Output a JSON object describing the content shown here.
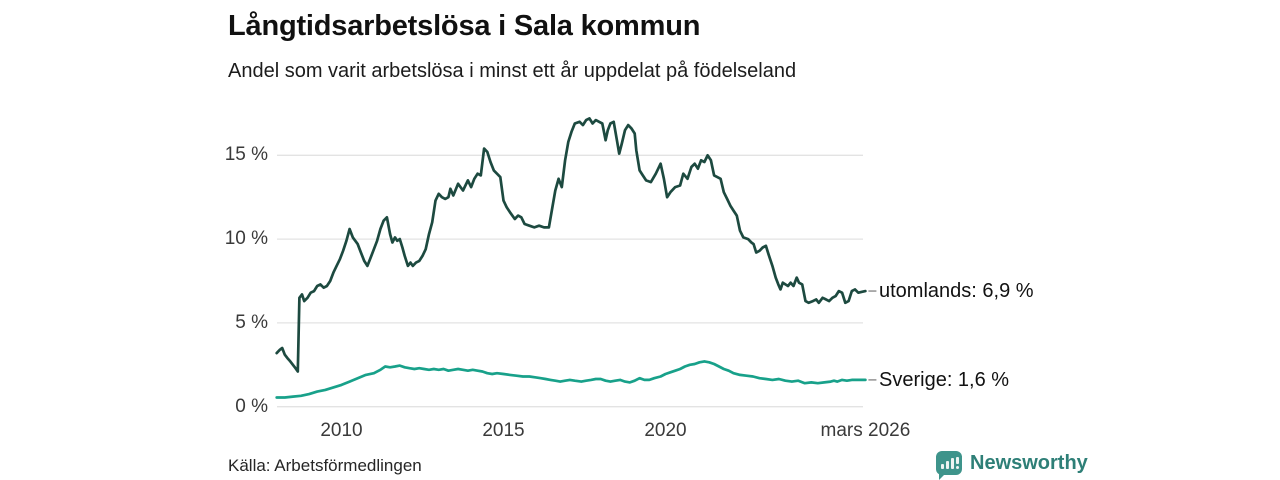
{
  "header": {
    "title": "Långtidsarbetslösa i Sala kommun",
    "subtitle": "Andel som varit arbetslösa i minst ett år uppdelat på födelseland"
  },
  "footer": {
    "source": "Källa: Arbetsförmedlingen",
    "brand_name": "Newsworthy",
    "brand_icon": "bar-chart-speech-bubble-icon",
    "brand_color": "#2e7f77"
  },
  "colors": {
    "background": "#ffffff",
    "gridline": "#e3e3e3",
    "axis_text": "#3a3a3a",
    "leader_tick": "#999999"
  },
  "chart_data": {
    "type": "line",
    "title": "Långtidsarbetslösa i Sala kommun",
    "subtitle": "Andel som varit arbetslösa i minst ett år uppdelat på födelseland",
    "xlabel": "",
    "ylabel": "",
    "xlim": [
      2008.0,
      2026.17
    ],
    "ylim": [
      0,
      18.2
    ],
    "grid": "horizontal",
    "legend_position": "right-end-labels",
    "y_ticks": [
      {
        "label": "0 %",
        "value": 0
      },
      {
        "label": "5 %",
        "value": 5
      },
      {
        "label": "10 %",
        "value": 10
      },
      {
        "label": "15 %",
        "value": 15
      }
    ],
    "x_ticks": [
      {
        "label": "2010",
        "x": 2010
      },
      {
        "label": "2015",
        "x": 2015
      },
      {
        "label": "2020",
        "x": 2020
      },
      {
        "label": "mars 2026",
        "x": 2026.17
      }
    ],
    "series": [
      {
        "name": "utomlands",
        "end_label": "utomlands: 6,9 %",
        "end_value_pct": 6.9,
        "color": "#1d4a40",
        "points": [
          [
            2008.0,
            3.2
          ],
          [
            2008.1,
            3.4
          ],
          [
            2008.17,
            3.5
          ],
          [
            2008.25,
            3.1
          ],
          [
            2008.33,
            2.9
          ],
          [
            2008.42,
            2.7
          ],
          [
            2008.5,
            2.5
          ],
          [
            2008.58,
            2.3
          ],
          [
            2008.65,
            2.1
          ],
          [
            2008.7,
            6.5
          ],
          [
            2008.78,
            6.7
          ],
          [
            2008.85,
            6.3
          ],
          [
            2008.95,
            6.5
          ],
          [
            2009.05,
            6.8
          ],
          [
            2009.15,
            6.9
          ],
          [
            2009.25,
            7.2
          ],
          [
            2009.35,
            7.3
          ],
          [
            2009.45,
            7.1
          ],
          [
            2009.55,
            7.2
          ],
          [
            2009.65,
            7.5
          ],
          [
            2009.75,
            8.0
          ],
          [
            2009.85,
            8.4
          ],
          [
            2009.95,
            8.8
          ],
          [
            2010.05,
            9.3
          ],
          [
            2010.15,
            9.9
          ],
          [
            2010.25,
            10.6
          ],
          [
            2010.35,
            10.1
          ],
          [
            2010.5,
            9.7
          ],
          [
            2010.6,
            9.2
          ],
          [
            2010.7,
            8.7
          ],
          [
            2010.8,
            8.4
          ],
          [
            2010.9,
            8.9
          ],
          [
            2011.0,
            9.4
          ],
          [
            2011.1,
            9.9
          ],
          [
            2011.2,
            10.6
          ],
          [
            2011.3,
            11.1
          ],
          [
            2011.4,
            11.3
          ],
          [
            2011.5,
            10.3
          ],
          [
            2011.57,
            9.8
          ],
          [
            2011.65,
            10.1
          ],
          [
            2011.72,
            9.9
          ],
          [
            2011.8,
            10.0
          ],
          [
            2011.88,
            9.5
          ],
          [
            2011.95,
            9.0
          ],
          [
            2012.05,
            8.4
          ],
          [
            2012.13,
            8.6
          ],
          [
            2012.2,
            8.4
          ],
          [
            2012.3,
            8.6
          ],
          [
            2012.4,
            8.7
          ],
          [
            2012.5,
            9.0
          ],
          [
            2012.6,
            9.4
          ],
          [
            2012.7,
            10.3
          ],
          [
            2012.8,
            11.0
          ],
          [
            2012.9,
            12.3
          ],
          [
            2013.0,
            12.7
          ],
          [
            2013.1,
            12.5
          ],
          [
            2013.2,
            12.4
          ],
          [
            2013.3,
            12.5
          ],
          [
            2013.36,
            13.0
          ],
          [
            2013.45,
            12.6
          ],
          [
            2013.6,
            13.3
          ],
          [
            2013.75,
            12.9
          ],
          [
            2013.9,
            13.5
          ],
          [
            2014.0,
            13.1
          ],
          [
            2014.1,
            13.6
          ],
          [
            2014.2,
            13.9
          ],
          [
            2014.3,
            13.8
          ],
          [
            2014.4,
            15.4
          ],
          [
            2014.5,
            15.2
          ],
          [
            2014.6,
            14.6
          ],
          [
            2014.7,
            14.1
          ],
          [
            2014.8,
            13.9
          ],
          [
            2014.9,
            13.7
          ],
          [
            2015.0,
            12.3
          ],
          [
            2015.1,
            11.9
          ],
          [
            2015.2,
            11.6
          ],
          [
            2015.35,
            11.2
          ],
          [
            2015.45,
            11.4
          ],
          [
            2015.55,
            11.3
          ],
          [
            2015.65,
            10.9
          ],
          [
            2015.8,
            10.8
          ],
          [
            2015.95,
            10.7
          ],
          [
            2016.1,
            10.8
          ],
          [
            2016.25,
            10.7
          ],
          [
            2016.4,
            10.7
          ],
          [
            2016.5,
            11.8
          ],
          [
            2016.6,
            12.9
          ],
          [
            2016.7,
            13.6
          ],
          [
            2016.8,
            13.1
          ],
          [
            2016.9,
            14.7
          ],
          [
            2017.0,
            15.8
          ],
          [
            2017.1,
            16.4
          ],
          [
            2017.2,
            16.9
          ],
          [
            2017.35,
            17.0
          ],
          [
            2017.45,
            16.8
          ],
          [
            2017.55,
            17.1
          ],
          [
            2017.65,
            17.2
          ],
          [
            2017.75,
            16.9
          ],
          [
            2017.85,
            17.1
          ],
          [
            2017.95,
            17.0
          ],
          [
            2018.05,
            16.9
          ],
          [
            2018.15,
            15.9
          ],
          [
            2018.22,
            16.5
          ],
          [
            2018.3,
            16.9
          ],
          [
            2018.4,
            17.0
          ],
          [
            2018.5,
            15.9
          ],
          [
            2018.57,
            15.1
          ],
          [
            2018.65,
            15.7
          ],
          [
            2018.75,
            16.5
          ],
          [
            2018.85,
            16.8
          ],
          [
            2018.95,
            16.6
          ],
          [
            2019.05,
            16.3
          ],
          [
            2019.1,
            15.3
          ],
          [
            2019.2,
            14.1
          ],
          [
            2019.3,
            13.8
          ],
          [
            2019.4,
            13.5
          ],
          [
            2019.55,
            13.4
          ],
          [
            2019.7,
            13.9
          ],
          [
            2019.85,
            14.5
          ],
          [
            2019.95,
            13.6
          ],
          [
            2020.05,
            12.5
          ],
          [
            2020.15,
            12.8
          ],
          [
            2020.3,
            13.1
          ],
          [
            2020.45,
            13.2
          ],
          [
            2020.55,
            13.9
          ],
          [
            2020.68,
            13.6
          ],
          [
            2020.8,
            14.3
          ],
          [
            2020.9,
            14.5
          ],
          [
            2021.0,
            14.2
          ],
          [
            2021.1,
            14.7
          ],
          [
            2021.2,
            14.6
          ],
          [
            2021.3,
            15.0
          ],
          [
            2021.4,
            14.7
          ],
          [
            2021.5,
            13.8
          ],
          [
            2021.6,
            13.7
          ],
          [
            2021.7,
            13.6
          ],
          [
            2021.8,
            12.8
          ],
          [
            2021.9,
            12.4
          ],
          [
            2022.0,
            12.0
          ],
          [
            2022.1,
            11.7
          ],
          [
            2022.2,
            11.4
          ],
          [
            2022.3,
            10.5
          ],
          [
            2022.4,
            10.1
          ],
          [
            2022.55,
            10.0
          ],
          [
            2022.65,
            9.8
          ],
          [
            2022.72,
            9.7
          ],
          [
            2022.8,
            9.2
          ],
          [
            2022.9,
            9.3
          ],
          [
            2023.0,
            9.5
          ],
          [
            2023.1,
            9.6
          ],
          [
            2023.18,
            9.1
          ],
          [
            2023.3,
            8.4
          ],
          [
            2023.4,
            7.7
          ],
          [
            2023.48,
            7.3
          ],
          [
            2023.55,
            7.0
          ],
          [
            2023.62,
            7.4
          ],
          [
            2023.7,
            7.3
          ],
          [
            2023.78,
            7.2
          ],
          [
            2023.86,
            7.4
          ],
          [
            2023.95,
            7.2
          ],
          [
            2024.05,
            7.7
          ],
          [
            2024.12,
            7.4
          ],
          [
            2024.22,
            7.3
          ],
          [
            2024.32,
            6.3
          ],
          [
            2024.42,
            6.2
          ],
          [
            2024.55,
            6.3
          ],
          [
            2024.65,
            6.4
          ],
          [
            2024.73,
            6.2
          ],
          [
            2024.85,
            6.5
          ],
          [
            2024.95,
            6.4
          ],
          [
            2025.05,
            6.3
          ],
          [
            2025.15,
            6.5
          ],
          [
            2025.25,
            6.6
          ],
          [
            2025.35,
            6.9
          ],
          [
            2025.45,
            6.8
          ],
          [
            2025.55,
            6.2
          ],
          [
            2025.65,
            6.3
          ],
          [
            2025.75,
            6.9
          ],
          [
            2025.85,
            7.0
          ],
          [
            2025.95,
            6.8
          ],
          [
            2026.05,
            6.85
          ],
          [
            2026.17,
            6.9
          ]
        ]
      },
      {
        "name": "Sverige",
        "end_label": "Sverige: 1,6 %",
        "end_value_pct": 1.6,
        "color": "#18a18a",
        "points": [
          [
            2008.0,
            0.55
          ],
          [
            2008.25,
            0.55
          ],
          [
            2008.5,
            0.6
          ],
          [
            2008.75,
            0.65
          ],
          [
            2009.0,
            0.75
          ],
          [
            2009.25,
            0.9
          ],
          [
            2009.5,
            1.0
          ],
          [
            2009.75,
            1.15
          ],
          [
            2010.0,
            1.3
          ],
          [
            2010.25,
            1.5
          ],
          [
            2010.5,
            1.7
          ],
          [
            2010.75,
            1.9
          ],
          [
            2011.0,
            2.0
          ],
          [
            2011.2,
            2.2
          ],
          [
            2011.35,
            2.4
          ],
          [
            2011.5,
            2.35
          ],
          [
            2011.65,
            2.4
          ],
          [
            2011.8,
            2.45
          ],
          [
            2011.95,
            2.35
          ],
          [
            2012.1,
            2.3
          ],
          [
            2012.25,
            2.25
          ],
          [
            2012.4,
            2.3
          ],
          [
            2012.55,
            2.25
          ],
          [
            2012.7,
            2.2
          ],
          [
            2012.85,
            2.25
          ],
          [
            2013.0,
            2.2
          ],
          [
            2013.15,
            2.25
          ],
          [
            2013.3,
            2.15
          ],
          [
            2013.45,
            2.2
          ],
          [
            2013.6,
            2.25
          ],
          [
            2013.75,
            2.2
          ],
          [
            2013.9,
            2.15
          ],
          [
            2014.05,
            2.2
          ],
          [
            2014.2,
            2.15
          ],
          [
            2014.35,
            2.1
          ],
          [
            2014.5,
            2.0
          ],
          [
            2014.65,
            1.95
          ],
          [
            2014.8,
            2.0
          ],
          [
            2015.0,
            1.95
          ],
          [
            2015.2,
            1.9
          ],
          [
            2015.4,
            1.85
          ],
          [
            2015.6,
            1.8
          ],
          [
            2015.8,
            1.8
          ],
          [
            2016.0,
            1.75
          ],
          [
            2016.15,
            1.7
          ],
          [
            2016.3,
            1.65
          ],
          [
            2016.45,
            1.6
          ],
          [
            2016.6,
            1.55
          ],
          [
            2016.75,
            1.5
          ],
          [
            2016.9,
            1.55
          ],
          [
            2017.05,
            1.6
          ],
          [
            2017.2,
            1.55
          ],
          [
            2017.4,
            1.5
          ],
          [
            2017.55,
            1.55
          ],
          [
            2017.7,
            1.6
          ],
          [
            2017.85,
            1.65
          ],
          [
            2018.0,
            1.65
          ],
          [
            2018.15,
            1.55
          ],
          [
            2018.3,
            1.5
          ],
          [
            2018.45,
            1.55
          ],
          [
            2018.6,
            1.6
          ],
          [
            2018.75,
            1.5
          ],
          [
            2018.9,
            1.45
          ],
          [
            2019.05,
            1.55
          ],
          [
            2019.2,
            1.7
          ],
          [
            2019.35,
            1.6
          ],
          [
            2019.5,
            1.6
          ],
          [
            2019.65,
            1.7
          ],
          [
            2019.85,
            1.8
          ],
          [
            2020.0,
            1.95
          ],
          [
            2020.15,
            2.05
          ],
          [
            2020.3,
            2.15
          ],
          [
            2020.45,
            2.25
          ],
          [
            2020.6,
            2.4
          ],
          [
            2020.75,
            2.5
          ],
          [
            2020.9,
            2.55
          ],
          [
            2021.05,
            2.65
          ],
          [
            2021.2,
            2.7
          ],
          [
            2021.35,
            2.65
          ],
          [
            2021.5,
            2.55
          ],
          [
            2021.65,
            2.4
          ],
          [
            2021.8,
            2.25
          ],
          [
            2021.95,
            2.15
          ],
          [
            2022.1,
            2.0
          ],
          [
            2022.3,
            1.9
          ],
          [
            2022.5,
            1.85
          ],
          [
            2022.7,
            1.8
          ],
          [
            2022.9,
            1.7
          ],
          [
            2023.1,
            1.65
          ],
          [
            2023.3,
            1.6
          ],
          [
            2023.5,
            1.65
          ],
          [
            2023.7,
            1.55
          ],
          [
            2023.9,
            1.5
          ],
          [
            2024.1,
            1.55
          ],
          [
            2024.3,
            1.4
          ],
          [
            2024.5,
            1.45
          ],
          [
            2024.7,
            1.4
          ],
          [
            2024.9,
            1.45
          ],
          [
            2025.1,
            1.5
          ],
          [
            2025.2,
            1.55
          ],
          [
            2025.3,
            1.5
          ],
          [
            2025.45,
            1.6
          ],
          [
            2025.6,
            1.55
          ],
          [
            2025.75,
            1.6
          ],
          [
            2025.9,
            1.6
          ],
          [
            2026.17,
            1.6
          ]
        ]
      }
    ]
  }
}
